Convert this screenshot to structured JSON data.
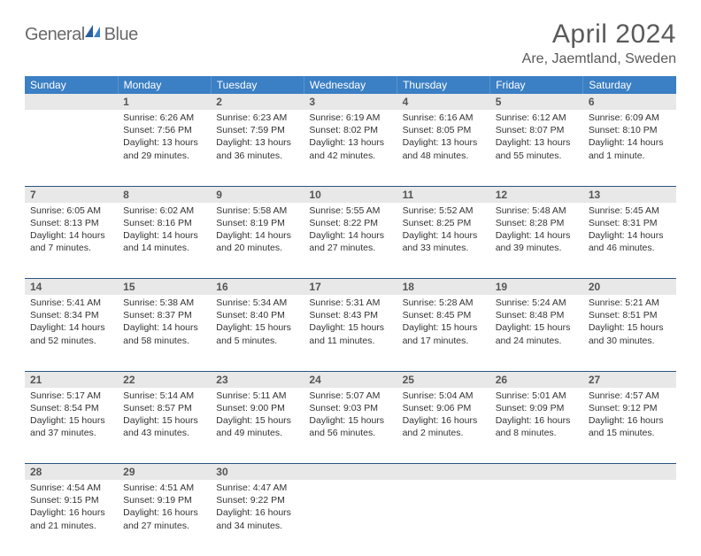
{
  "logo": {
    "text1": "General",
    "text2": "Blue"
  },
  "title": "April 2024",
  "location": "Are, Jaemtland, Sweden",
  "colors": {
    "header_bg": "#3b7fc4",
    "header_text": "#ffffff",
    "daynum_bg": "#e8e8e8",
    "daynum_border_top": "#2a5580",
    "text": "#333333",
    "title_text": "#5a5a5a"
  },
  "weekdays": [
    "Sunday",
    "Monday",
    "Tuesday",
    "Wednesday",
    "Thursday",
    "Friday",
    "Saturday"
  ],
  "weeks": [
    {
      "nums": [
        "",
        "1",
        "2",
        "3",
        "4",
        "5",
        "6"
      ],
      "cells": [
        null,
        {
          "sunrise": "Sunrise: 6:26 AM",
          "sunset": "Sunset: 7:56 PM",
          "day1": "Daylight: 13 hours",
          "day2": "and 29 minutes."
        },
        {
          "sunrise": "Sunrise: 6:23 AM",
          "sunset": "Sunset: 7:59 PM",
          "day1": "Daylight: 13 hours",
          "day2": "and 36 minutes."
        },
        {
          "sunrise": "Sunrise: 6:19 AM",
          "sunset": "Sunset: 8:02 PM",
          "day1": "Daylight: 13 hours",
          "day2": "and 42 minutes."
        },
        {
          "sunrise": "Sunrise: 6:16 AM",
          "sunset": "Sunset: 8:05 PM",
          "day1": "Daylight: 13 hours",
          "day2": "and 48 minutes."
        },
        {
          "sunrise": "Sunrise: 6:12 AM",
          "sunset": "Sunset: 8:07 PM",
          "day1": "Daylight: 13 hours",
          "day2": "and 55 minutes."
        },
        {
          "sunrise": "Sunrise: 6:09 AM",
          "sunset": "Sunset: 8:10 PM",
          "day1": "Daylight: 14 hours",
          "day2": "and 1 minute."
        }
      ]
    },
    {
      "nums": [
        "7",
        "8",
        "9",
        "10",
        "11",
        "12",
        "13"
      ],
      "cells": [
        {
          "sunrise": "Sunrise: 6:05 AM",
          "sunset": "Sunset: 8:13 PM",
          "day1": "Daylight: 14 hours",
          "day2": "and 7 minutes."
        },
        {
          "sunrise": "Sunrise: 6:02 AM",
          "sunset": "Sunset: 8:16 PM",
          "day1": "Daylight: 14 hours",
          "day2": "and 14 minutes."
        },
        {
          "sunrise": "Sunrise: 5:58 AM",
          "sunset": "Sunset: 8:19 PM",
          "day1": "Daylight: 14 hours",
          "day2": "and 20 minutes."
        },
        {
          "sunrise": "Sunrise: 5:55 AM",
          "sunset": "Sunset: 8:22 PM",
          "day1": "Daylight: 14 hours",
          "day2": "and 27 minutes."
        },
        {
          "sunrise": "Sunrise: 5:52 AM",
          "sunset": "Sunset: 8:25 PM",
          "day1": "Daylight: 14 hours",
          "day2": "and 33 minutes."
        },
        {
          "sunrise": "Sunrise: 5:48 AM",
          "sunset": "Sunset: 8:28 PM",
          "day1": "Daylight: 14 hours",
          "day2": "and 39 minutes."
        },
        {
          "sunrise": "Sunrise: 5:45 AM",
          "sunset": "Sunset: 8:31 PM",
          "day1": "Daylight: 14 hours",
          "day2": "and 46 minutes."
        }
      ]
    },
    {
      "nums": [
        "14",
        "15",
        "16",
        "17",
        "18",
        "19",
        "20"
      ],
      "cells": [
        {
          "sunrise": "Sunrise: 5:41 AM",
          "sunset": "Sunset: 8:34 PM",
          "day1": "Daylight: 14 hours",
          "day2": "and 52 minutes."
        },
        {
          "sunrise": "Sunrise: 5:38 AM",
          "sunset": "Sunset: 8:37 PM",
          "day1": "Daylight: 14 hours",
          "day2": "and 58 minutes."
        },
        {
          "sunrise": "Sunrise: 5:34 AM",
          "sunset": "Sunset: 8:40 PM",
          "day1": "Daylight: 15 hours",
          "day2": "and 5 minutes."
        },
        {
          "sunrise": "Sunrise: 5:31 AM",
          "sunset": "Sunset: 8:43 PM",
          "day1": "Daylight: 15 hours",
          "day2": "and 11 minutes."
        },
        {
          "sunrise": "Sunrise: 5:28 AM",
          "sunset": "Sunset: 8:45 PM",
          "day1": "Daylight: 15 hours",
          "day2": "and 17 minutes."
        },
        {
          "sunrise": "Sunrise: 5:24 AM",
          "sunset": "Sunset: 8:48 PM",
          "day1": "Daylight: 15 hours",
          "day2": "and 24 minutes."
        },
        {
          "sunrise": "Sunrise: 5:21 AM",
          "sunset": "Sunset: 8:51 PM",
          "day1": "Daylight: 15 hours",
          "day2": "and 30 minutes."
        }
      ]
    },
    {
      "nums": [
        "21",
        "22",
        "23",
        "24",
        "25",
        "26",
        "27"
      ],
      "cells": [
        {
          "sunrise": "Sunrise: 5:17 AM",
          "sunset": "Sunset: 8:54 PM",
          "day1": "Daylight: 15 hours",
          "day2": "and 37 minutes."
        },
        {
          "sunrise": "Sunrise: 5:14 AM",
          "sunset": "Sunset: 8:57 PM",
          "day1": "Daylight: 15 hours",
          "day2": "and 43 minutes."
        },
        {
          "sunrise": "Sunrise: 5:11 AM",
          "sunset": "Sunset: 9:00 PM",
          "day1": "Daylight: 15 hours",
          "day2": "and 49 minutes."
        },
        {
          "sunrise": "Sunrise: 5:07 AM",
          "sunset": "Sunset: 9:03 PM",
          "day1": "Daylight: 15 hours",
          "day2": "and 56 minutes."
        },
        {
          "sunrise": "Sunrise: 5:04 AM",
          "sunset": "Sunset: 9:06 PM",
          "day1": "Daylight: 16 hours",
          "day2": "and 2 minutes."
        },
        {
          "sunrise": "Sunrise: 5:01 AM",
          "sunset": "Sunset: 9:09 PM",
          "day1": "Daylight: 16 hours",
          "day2": "and 8 minutes."
        },
        {
          "sunrise": "Sunrise: 4:57 AM",
          "sunset": "Sunset: 9:12 PM",
          "day1": "Daylight: 16 hours",
          "day2": "and 15 minutes."
        }
      ]
    },
    {
      "nums": [
        "28",
        "29",
        "30",
        "",
        "",
        "",
        ""
      ],
      "cells": [
        {
          "sunrise": "Sunrise: 4:54 AM",
          "sunset": "Sunset: 9:15 PM",
          "day1": "Daylight: 16 hours",
          "day2": "and 21 minutes."
        },
        {
          "sunrise": "Sunrise: 4:51 AM",
          "sunset": "Sunset: 9:19 PM",
          "day1": "Daylight: 16 hours",
          "day2": "and 27 minutes."
        },
        {
          "sunrise": "Sunrise: 4:47 AM",
          "sunset": "Sunset: 9:22 PM",
          "day1": "Daylight: 16 hours",
          "day2": "and 34 minutes."
        },
        null,
        null,
        null,
        null
      ]
    }
  ]
}
